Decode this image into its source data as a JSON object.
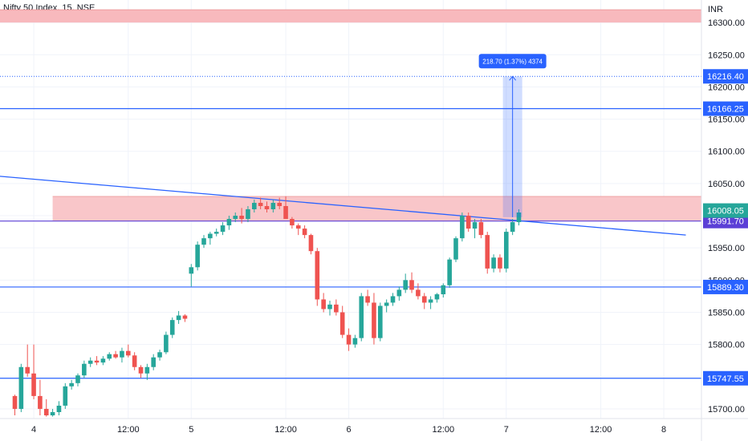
{
  "chart_data": {
    "type": "candlestick",
    "title": "Nifty 50 Index, 15, NSE",
    "currency": "INR",
    "ylim": [
      15685,
      16335
    ],
    "y_ticks": [
      15700.0,
      15750.0,
      15800.0,
      15850.0,
      15900.0,
      15950.0,
      16000.0,
      16050.0,
      16100.0,
      16150.0,
      16200.0,
      16250.0,
      16300.0
    ],
    "x_ticks": [
      {
        "label": "4",
        "i": 3
      },
      {
        "label": "12:00",
        "i": 18
      },
      {
        "label": "5",
        "i": 28
      },
      {
        "label": "12:00",
        "i": 43
      },
      {
        "label": "6",
        "i": 53
      },
      {
        "label": "12:00",
        "i": 68
      },
      {
        "label": "7",
        "i": 78
      },
      {
        "label": "12:00",
        "i": 93
      },
      {
        "label": "8",
        "i": 103
      }
    ],
    "candles": [
      [
        15720,
        15722,
        15690,
        15700
      ],
      [
        15700,
        15770,
        15695,
        15765
      ],
      [
        15765,
        15800,
        15750,
        15755
      ],
      [
        15755,
        15800,
        15715,
        15720
      ],
      [
        15720,
        15745,
        15690,
        15700
      ],
      [
        15700,
        15715,
        15688,
        15690
      ],
      [
        15690,
        15700,
        15688,
        15695
      ],
      [
        15695,
        15712,
        15690,
        15705
      ],
      [
        15705,
        15740,
        15700,
        15735
      ],
      [
        15735,
        15745,
        15730,
        15740
      ],
      [
        15740,
        15755,
        15735,
        15752
      ],
      [
        15752,
        15775,
        15748,
        15770
      ],
      [
        15770,
        15780,
        15765,
        15775
      ],
      [
        15775,
        15782,
        15768,
        15772
      ],
      [
        15772,
        15782,
        15768,
        15778
      ],
      [
        15778,
        15788,
        15775,
        15785
      ],
      [
        15785,
        15790,
        15778,
        15780
      ],
      [
        15780,
        15795,
        15772,
        15790
      ],
      [
        15790,
        15800,
        15780,
        15783
      ],
      [
        15783,
        15788,
        15760,
        15765
      ],
      [
        15765,
        15768,
        15748,
        15755
      ],
      [
        15755,
        15770,
        15745,
        15765
      ],
      [
        15765,
        15785,
        15760,
        15780
      ],
      [
        15780,
        15792,
        15775,
        15788
      ],
      [
        15788,
        15820,
        15785,
        15815
      ],
      [
        15815,
        15842,
        15810,
        15838
      ],
      [
        15838,
        15852,
        15832,
        15845
      ],
      [
        15845,
        15847,
        15835,
        15840
      ],
      [
        15910,
        15925,
        15890,
        15920
      ],
      [
        15920,
        15960,
        15915,
        15955
      ],
      [
        15955,
        15970,
        15950,
        15965
      ],
      [
        15965,
        15975,
        15955,
        15972
      ],
      [
        15972,
        15980,
        15968,
        15975
      ],
      [
        15975,
        15990,
        15970,
        15985
      ],
      [
        15985,
        16000,
        15978,
        15995
      ],
      [
        15995,
        16005,
        15990,
        16000
      ],
      [
        16000,
        16012,
        15988,
        15995
      ],
      [
        15995,
        16015,
        15990,
        16010
      ],
      [
        16010,
        16025,
        16005,
        16020
      ],
      [
        16020,
        16028,
        16010,
        16015
      ],
      [
        16015,
        16022,
        16005,
        16010
      ],
      [
        16010,
        16025,
        16005,
        16020
      ],
      [
        16020,
        16028,
        16010,
        16015
      ],
      [
        16015,
        16030,
        16000,
        15995
      ],
      [
        15995,
        15998,
        15980,
        15985
      ],
      [
        15985,
        15988,
        15970,
        15980
      ],
      [
        15980,
        15985,
        15965,
        15970
      ],
      [
        15970,
        15972,
        15940,
        15945
      ],
      [
        15945,
        15950,
        15860,
        15870
      ],
      [
        15870,
        15880,
        15850,
        15855
      ],
      [
        15855,
        15868,
        15845,
        15862
      ],
      [
        15862,
        15870,
        15845,
        15850
      ],
      [
        15850,
        15860,
        15810,
        15815
      ],
      [
        15815,
        15825,
        15790,
        15800
      ],
      [
        15800,
        15815,
        15795,
        15810
      ],
      [
        15810,
        15880,
        15805,
        15875
      ],
      [
        15875,
        15885,
        15860,
        15865
      ],
      [
        15865,
        15880,
        15800,
        15810
      ],
      [
        15810,
        15865,
        15805,
        15860
      ],
      [
        15860,
        15870,
        15850,
        15865
      ],
      [
        15865,
        15880,
        15860,
        15875
      ],
      [
        15875,
        15890,
        15868,
        15885
      ],
      [
        15885,
        15910,
        15880,
        15900
      ],
      [
        15900,
        15912,
        15880,
        15885
      ],
      [
        15885,
        15895,
        15870,
        15875
      ],
      [
        15875,
        15880,
        15855,
        15865
      ],
      [
        15865,
        15875,
        15855,
        15870
      ],
      [
        15870,
        15880,
        15865,
        15878
      ],
      [
        15878,
        15895,
        15873,
        15892
      ],
      [
        15892,
        15935,
        15888,
        15932
      ],
      [
        15932,
        15968,
        15928,
        15965
      ],
      [
        15965,
        16005,
        15960,
        16000
      ],
      [
        16000,
        16005,
        15975,
        15980
      ],
      [
        15980,
        15995,
        15965,
        15990
      ],
      [
        15990,
        15995,
        15965,
        15970
      ],
      [
        15970,
        15975,
        15910,
        15918
      ],
      [
        15918,
        15940,
        15912,
        15935
      ],
      [
        15935,
        15940,
        15912,
        15918
      ],
      [
        15918,
        15980,
        15912,
        15975
      ],
      [
        15975,
        15995,
        15970,
        15990
      ],
      [
        15990,
        16010,
        15985,
        16005
      ]
    ],
    "horizontal_lines": [
      {
        "price": 16166.25,
        "color": "#2962ff",
        "label": "16166.25"
      },
      {
        "price": 15991.7,
        "color": "#5b3fd6",
        "label": "15991.70"
      },
      {
        "price": 15889.3,
        "color": "#2962ff",
        "label": "15889.30"
      },
      {
        "price": 15747.55,
        "color": "#2962ff",
        "label": "15747.55"
      }
    ],
    "dotted_line": {
      "price": 16216.4,
      "color": "#2962ff",
      "label": "16216.40"
    },
    "last_price": {
      "price": 16008.05,
      "color": "#26a69a",
      "label": "16008.05"
    },
    "zones": [
      {
        "from": 16300,
        "to": 16320,
        "x_from_index": null,
        "color": "#f8b9bd"
      },
      {
        "from": 15991.7,
        "to": 16030,
        "x_from_index": 6,
        "color": "#f9c6c9"
      }
    ],
    "trendline": {
      "from_index": -4.5,
      "from_price": 16063,
      "to_index": 106.5,
      "to_price": 15970,
      "color": "#2962ff"
    },
    "measure": {
      "from_price": 15997.7,
      "to_price": 16216.4,
      "at_index": 79,
      "label": "218.70 (1.37%) 4374",
      "color": "#2962ff"
    }
  }
}
